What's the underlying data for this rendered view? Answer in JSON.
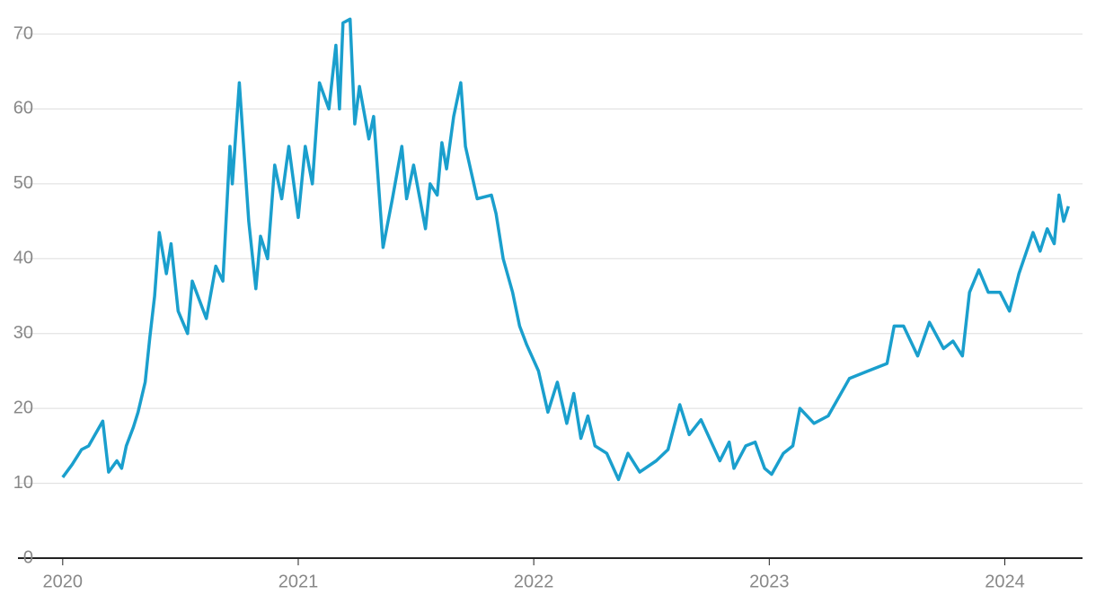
{
  "chart_data": {
    "type": "line",
    "x": [
      2020.0,
      2020.04,
      2020.08,
      2020.11,
      2020.17,
      2020.195,
      2020.23,
      2020.25,
      2020.27,
      2020.3,
      2020.32,
      2020.35,
      2020.37,
      2020.39,
      2020.41,
      2020.44,
      2020.46,
      2020.49,
      2020.53,
      2020.55,
      2020.61,
      2020.65,
      2020.68,
      2020.71,
      2020.72,
      2020.75,
      2020.79,
      2020.82,
      2020.84,
      2020.87,
      2020.9,
      2020.93,
      2020.96,
      2021.0,
      2021.03,
      2021.06,
      2021.09,
      2021.13,
      2021.16,
      2021.175,
      2021.19,
      2021.22,
      2021.24,
      2021.26,
      2021.3,
      2021.32,
      2021.36,
      2021.4,
      2021.44,
      2021.46,
      2021.49,
      2021.54,
      2021.56,
      2021.59,
      2021.61,
      2021.63,
      2021.66,
      2021.69,
      2021.71,
      2021.76,
      2021.82,
      2021.84,
      2021.87,
      2021.91,
      2021.94,
      2021.97,
      2022.02,
      2022.06,
      2022.1,
      2022.14,
      2022.17,
      2022.2,
      2022.23,
      2022.26,
      2022.31,
      2022.36,
      2022.4,
      2022.45,
      2022.52,
      2022.57,
      2022.62,
      2022.66,
      2022.71,
      2022.79,
      2022.83,
      2022.85,
      2022.9,
      2022.94,
      2022.98,
      2023.01,
      2023.06,
      2023.1,
      2023.13,
      2023.19,
      2023.25,
      2023.34,
      2023.42,
      2023.5,
      2023.53,
      2023.57,
      2023.63,
      2023.68,
      2023.74,
      2023.78,
      2023.82,
      2023.85,
      2023.89,
      2023.93,
      2023.98,
      2024.02,
      2024.06,
      2024.12,
      2024.15,
      2024.18,
      2024.21,
      2024.23,
      2024.25,
      2024.27
    ],
    "series": [
      {
        "color": "#1a9fcd",
        "values": [
          10.8,
          12.5,
          14.5,
          15,
          18.3,
          11.5,
          13,
          12,
          15,
          17.5,
          19.5,
          23.5,
          29.5,
          35,
          43.5,
          38,
          42,
          33,
          30,
          37,
          32,
          39,
          37,
          55,
          50,
          63.5,
          45,
          36,
          43,
          40,
          52.5,
          48,
          55,
          45.5,
          55,
          50,
          63.5,
          60,
          68.5,
          60,
          71.5,
          72,
          58,
          63,
          56,
          59,
          41.5,
          48,
          55,
          48,
          52.5,
          44,
          50,
          48.5,
          55.5,
          52,
          59,
          63.5,
          55,
          48,
          48.5,
          46,
          40,
          35.5,
          31,
          28.5,
          25,
          19.5,
          23.5,
          18,
          22,
          16,
          19,
          15,
          14,
          10.5,
          14,
          11.5,
          13,
          14.5,
          20.5,
          16.5,
          18.5,
          13,
          15.5,
          12,
          15,
          15.5,
          12,
          11.2,
          14,
          15,
          20,
          18,
          19,
          24,
          25,
          26,
          31,
          31,
          27,
          31.5,
          28,
          29,
          27,
          35.5,
          38.5,
          35.5,
          35.5,
          33,
          38,
          43.5,
          41,
          44,
          42,
          48.5,
          45,
          47
        ]
      }
    ],
    "xlim": [
      2019.81,
      2024.33
    ],
    "xticks": [
      2020,
      2021,
      2022,
      2023,
      2024
    ],
    "ylim": [
      0,
      72
    ],
    "yticks": [
      0,
      10,
      20,
      30,
      40,
      50,
      60,
      70
    ],
    "grid": true
  }
}
